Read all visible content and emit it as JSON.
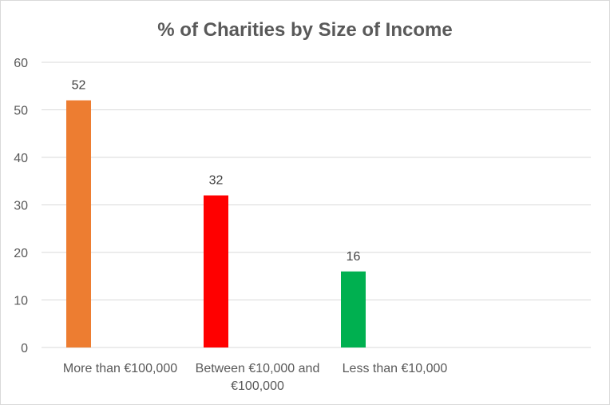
{
  "chart_data": {
    "type": "bar",
    "title": "% of Charities by Size of Income",
    "xlabel": "",
    "ylabel": "",
    "categories": [
      [
        "More than €100,000"
      ],
      [
        "Between €10,000 and",
        "€100,000"
      ],
      [
        "Less than €10,000"
      ]
    ],
    "series": [
      {
        "values": [
          52,
          32,
          16
        ],
        "colors": [
          "#ED7D31",
          "#FF0000",
          "#00B050"
        ]
      }
    ],
    "ylim": [
      0,
      60
    ],
    "yticks": [
      0,
      10,
      20,
      30,
      40,
      50,
      60
    ],
    "data_labels": true,
    "grid": true,
    "legend": "none"
  }
}
